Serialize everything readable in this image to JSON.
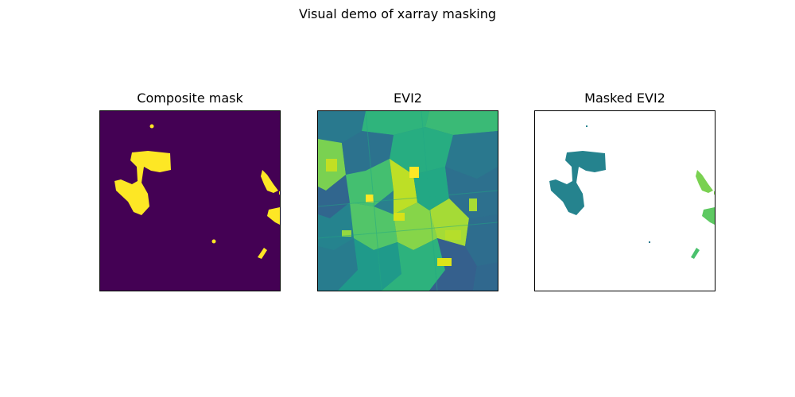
{
  "figure": {
    "suptitle": "Visual demo of xarray masking"
  },
  "colors": {
    "mask_background": "#440154",
    "mask_foreground": "#fde725",
    "evi_teal": "#2a788e",
    "evi_green": "#22a884",
    "evi_lightgreen": "#7ad151",
    "evi_yellow": "#bddf26",
    "masked_teal": "#25838e",
    "masked_green": "#6ccd5a"
  },
  "chart_data": [
    {
      "type": "heatmap",
      "title": "Composite mask",
      "colormap": "viridis",
      "values": "binary mask (0 = background, 1 = masked)",
      "xticks": [],
      "yticks": []
    },
    {
      "type": "heatmap",
      "title": "EVI2",
      "colormap": "viridis",
      "xticks": [],
      "yticks": []
    },
    {
      "type": "heatmap",
      "title": "Masked EVI2",
      "colormap": "viridis",
      "xticks": [],
      "yticks": []
    }
  ]
}
